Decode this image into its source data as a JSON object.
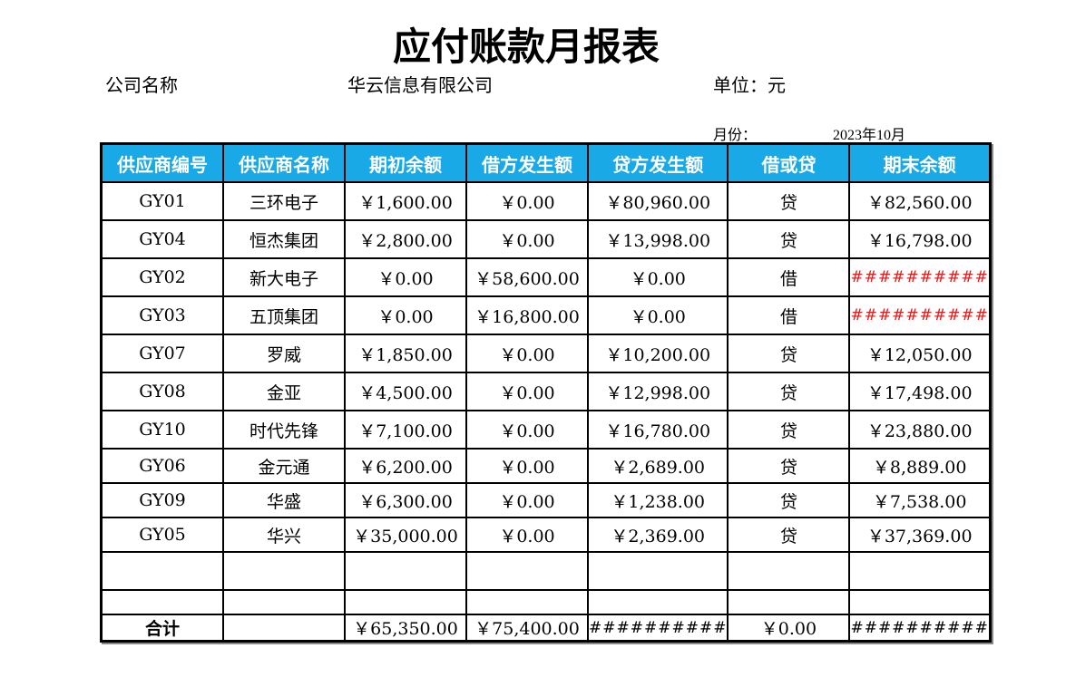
{
  "title": "应付账款月报表",
  "company_label": "公司名称",
  "company_name": "华云信息有限公司",
  "unit_label": "单位：元",
  "month_label": "月份：",
  "month_value": "2023年10月",
  "colors": {
    "header_bg": "#19a9e6",
    "overflow_red": "#e02020"
  },
  "headers": [
    "供应商编号",
    "供应商名称",
    "期初余额",
    "借方发生额",
    "贷方发生额",
    "借或贷",
    "期末余额"
  ],
  "rows": [
    [
      "GY01",
      "三环电子",
      "￥1,600.00",
      "￥0.00",
      "￥80,960.00",
      "贷",
      "￥82,560.00"
    ],
    [
      "GY04",
      "恒杰集团",
      "￥2,800.00",
      "￥0.00",
      "￥13,998.00",
      "贷",
      "￥16,798.00"
    ],
    [
      "GY02",
      "新大电子",
      "￥0.00",
      "￥58,600.00",
      "￥0.00",
      "借",
      "##########"
    ],
    [
      "GY03",
      "五顶集团",
      "￥0.00",
      "￥16,800.00",
      "￥0.00",
      "借",
      "##########"
    ],
    [
      "GY07",
      "罗威",
      "￥1,850.00",
      "￥0.00",
      "￥10,200.00",
      "贷",
      "￥12,050.00"
    ],
    [
      "GY08",
      "金亚",
      "￥4,500.00",
      "￥0.00",
      "￥12,998.00",
      "贷",
      "￥17,498.00"
    ],
    [
      "GY10",
      "时代先锋",
      "￥7,100.00",
      "￥0.00",
      "￥16,780.00",
      "贷",
      "￥23,880.00"
    ],
    [
      "GY06",
      "金元通",
      "￥6,200.00",
      "￥0.00",
      "￥2,689.00",
      "贷",
      "￥8,889.00"
    ],
    [
      "GY09",
      "华盛",
      "￥6,300.00",
      "￥0.00",
      "￥1,238.00",
      "贷",
      "￥7,538.00"
    ],
    [
      "GY05",
      "华兴",
      "￥35,000.00",
      "￥0.00",
      "￥2,369.00",
      "贷",
      "￥37,369.00"
    ]
  ],
  "total": [
    "合计",
    "",
    "￥65,350.00",
    "￥75,400.00",
    "##########",
    "￥0.00",
    "##########"
  ]
}
